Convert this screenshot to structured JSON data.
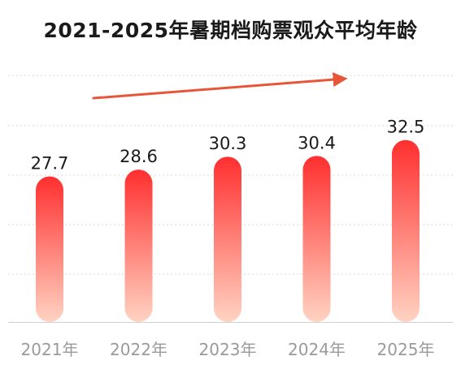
{
  "chart_data": {
    "type": "bar",
    "title": "2021-2025年暑期档购票观众平均年龄",
    "categories": [
      "2021年",
      "2022年",
      "2023年",
      "2024年",
      "2025年"
    ],
    "values": [
      27.7,
      28.6,
      30.3,
      30.4,
      32.5
    ],
    "value_labels": [
      "27.7",
      "28.6",
      "30.3",
      "30.4",
      "32.5"
    ],
    "xlabel": "",
    "ylabel": "",
    "grid": true,
    "trend_arrow": true,
    "colors": {
      "bar_top": "#ff2f2f",
      "bar_bottom": "#ffd3c2",
      "trend_arrow": "#e8563a",
      "gridline": "#d8d8d8",
      "baseline": "#cfcfcf",
      "category_text": "#9a9a9a",
      "value_text": "#1a1a1a"
    }
  }
}
